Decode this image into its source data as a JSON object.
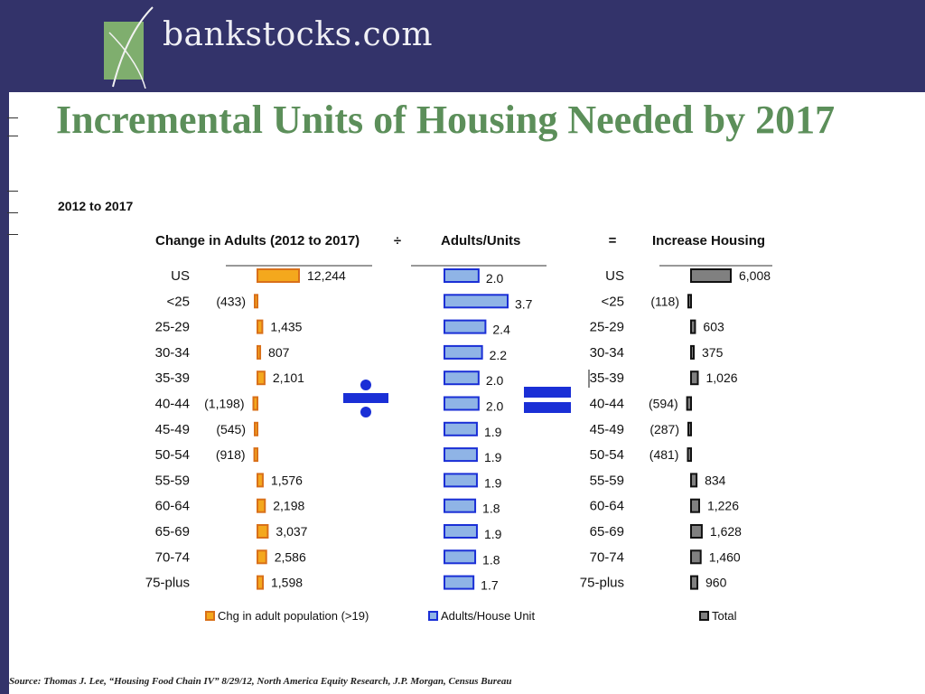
{
  "header": {
    "logo_text": "bankstocks.com"
  },
  "slide": {
    "title": "Incremental Units of Housing Needed by 2017",
    "subtitle": "2012 to 2017",
    "source": "Source: Thomas J. Lee, “Housing Food Chain IV” 8/29/12, North America Equity Research, J.P. Morgan, Census Bureau"
  },
  "colors": {
    "header_bg": "#33336a",
    "title_green": "#5c8f5a",
    "orange_fill": "#f4a81d",
    "orange_edge": "#d9701a",
    "blue_fill": "#8fb4e6",
    "blue_edge": "#1a2fd6",
    "gray_fill": "#808080",
    "gray_edge": "#111111",
    "operator_blue": "#1a2fd6"
  },
  "chart_data": [
    {
      "type": "bar",
      "title": "Change in Adults (2012 to 2017)",
      "categories": [
        "US",
        "<25",
        "25-29",
        "30-34",
        "35-39",
        "40-44",
        "45-49",
        "50-54",
        "55-59",
        "60-64",
        "65-69",
        "70-74",
        "75-plus"
      ],
      "series": [
        {
          "name": "Chg in adult population (>19)",
          "values": [
            12244,
            -433,
            1435,
            807,
            2101,
            -1198,
            -545,
            -918,
            1576,
            2198,
            3037,
            2586,
            1598
          ],
          "labels": [
            "12,244",
            "(433)",
            "1,435",
            "807",
            "2,101",
            "(1,198)",
            "(545)",
            "(918)",
            "1,576",
            "2,198",
            "3,037",
            "2,586",
            "1,598"
          ]
        }
      ]
    },
    {
      "type": "bar",
      "title": "Adults/Units",
      "operator_before": "÷",
      "categories": [
        "US",
        "<25",
        "25-29",
        "30-34",
        "35-39",
        "40-44",
        "45-49",
        "50-54",
        "55-59",
        "60-64",
        "65-69",
        "70-74",
        "75-plus"
      ],
      "series": [
        {
          "name": "Adults/House Unit",
          "values": [
            2.0,
            3.7,
            2.4,
            2.2,
            2.0,
            2.0,
            1.9,
            1.9,
            1.9,
            1.8,
            1.9,
            1.8,
            1.7
          ],
          "labels": [
            "2.0",
            "3.7",
            "2.4",
            "2.2",
            "2.0",
            "2.0",
            "1.9",
            "1.9",
            "1.9",
            "1.8",
            "1.9",
            "1.8",
            "1.7"
          ]
        }
      ]
    },
    {
      "type": "bar",
      "title": "Increase Housing",
      "operator_before": "=",
      "categories": [
        "US",
        "<25",
        "25-29",
        "30-34",
        "35-39",
        "40-44",
        "45-49",
        "50-54",
        "55-59",
        "60-64",
        "65-69",
        "70-74",
        "75-plus"
      ],
      "series": [
        {
          "name": "Total",
          "values": [
            6008,
            -118,
            603,
            375,
            1026,
            -594,
            -287,
            -481,
            834,
            1226,
            1628,
            1460,
            960
          ],
          "labels": [
            "6,008",
            "(118)",
            "603",
            "375",
            "1,026",
            "(594)",
            "(287)",
            "(481)",
            "834",
            "1,226",
            "1,628",
            "1,460",
            "960"
          ]
        }
      ]
    }
  ]
}
